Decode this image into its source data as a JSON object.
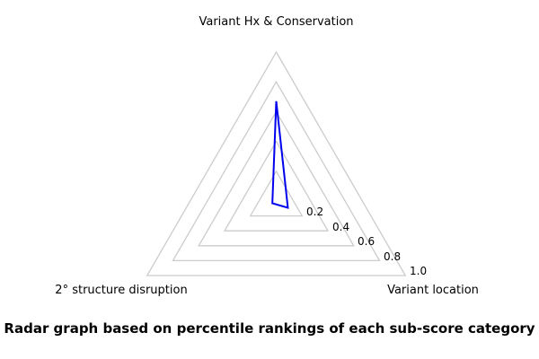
{
  "chart_data": {
    "type": "radar",
    "caption": "Radar graph based on percentile rankings of each sub-score category",
    "categories": [
      "Variant Hx & Conservation",
      "Variant location",
      "2° structure disruption"
    ],
    "values": [
      0.67,
      0.09,
      0.03
    ],
    "axes_angles_deg": [
      90,
      -30,
      210
    ],
    "ticks": [
      0.2,
      0.4,
      0.6,
      0.8,
      1.0
    ],
    "tick_labels": [
      "0.2",
      "0.4",
      "0.6",
      "0.8",
      "1.0"
    ],
    "rlim": [
      0,
      1.0
    ],
    "grid": true,
    "grid_shape": "polygon",
    "legend": false,
    "colors": {
      "series": "#0000ee",
      "grid": "#cccccc",
      "text": "#000000"
    }
  }
}
